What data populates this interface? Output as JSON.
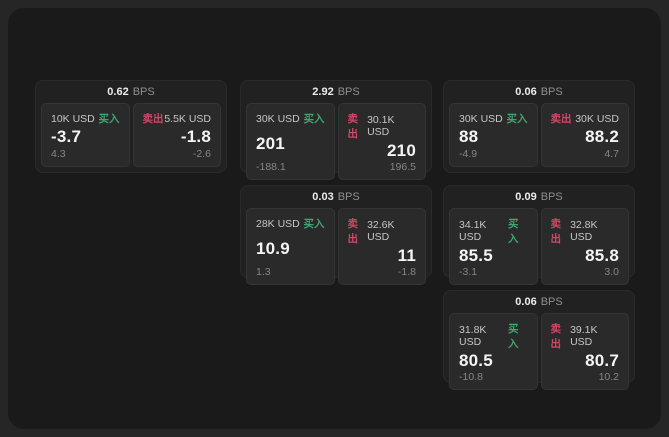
{
  "labels": {
    "bps_unit": "BPS",
    "buy": "买入",
    "sell": "卖出"
  },
  "colors": {
    "buy_accent": "#3fa571",
    "sell_accent": "#cf4867",
    "window_bg": "#1a1a1a",
    "card_bg": "#212121",
    "panel_bg": "#2a2a2a"
  },
  "cards": [
    {
      "bps": "0.62",
      "buy": {
        "amount": "10K USD",
        "value": "-3.7",
        "sub": "4.3"
      },
      "sell": {
        "amount": "5.5K USD",
        "value": "-1.8",
        "sub": "-2.6"
      }
    },
    {
      "bps": "2.92",
      "buy": {
        "amount": "30K USD",
        "value": "201",
        "sub": "-188.1"
      },
      "sell": {
        "amount": "30.1K USD",
        "value": "210",
        "sub": "196.5"
      }
    },
    {
      "bps": "0.06",
      "buy": {
        "amount": "30K USD",
        "value": "88",
        "sub": "-4.9"
      },
      "sell": {
        "amount": "30K USD",
        "value": "88.2",
        "sub": "4.7"
      }
    },
    {
      "bps": "0.03",
      "buy": {
        "amount": "28K USD",
        "value": "10.9",
        "sub": "1.3"
      },
      "sell": {
        "amount": "32.6K USD",
        "value": "11",
        "sub": "-1.8"
      }
    },
    {
      "bps": "0.09",
      "buy": {
        "amount": "34.1K USD",
        "value": "85.5",
        "sub": "-3.1"
      },
      "sell": {
        "amount": "32.8K USD",
        "value": "85.8",
        "sub": "3.0"
      }
    },
    {
      "bps": "0.06",
      "buy": {
        "amount": "31.8K USD",
        "value": "80.5",
        "sub": "-10.8"
      },
      "sell": {
        "amount": "39.1K USD",
        "value": "80.7",
        "sub": "10.2"
      }
    }
  ]
}
